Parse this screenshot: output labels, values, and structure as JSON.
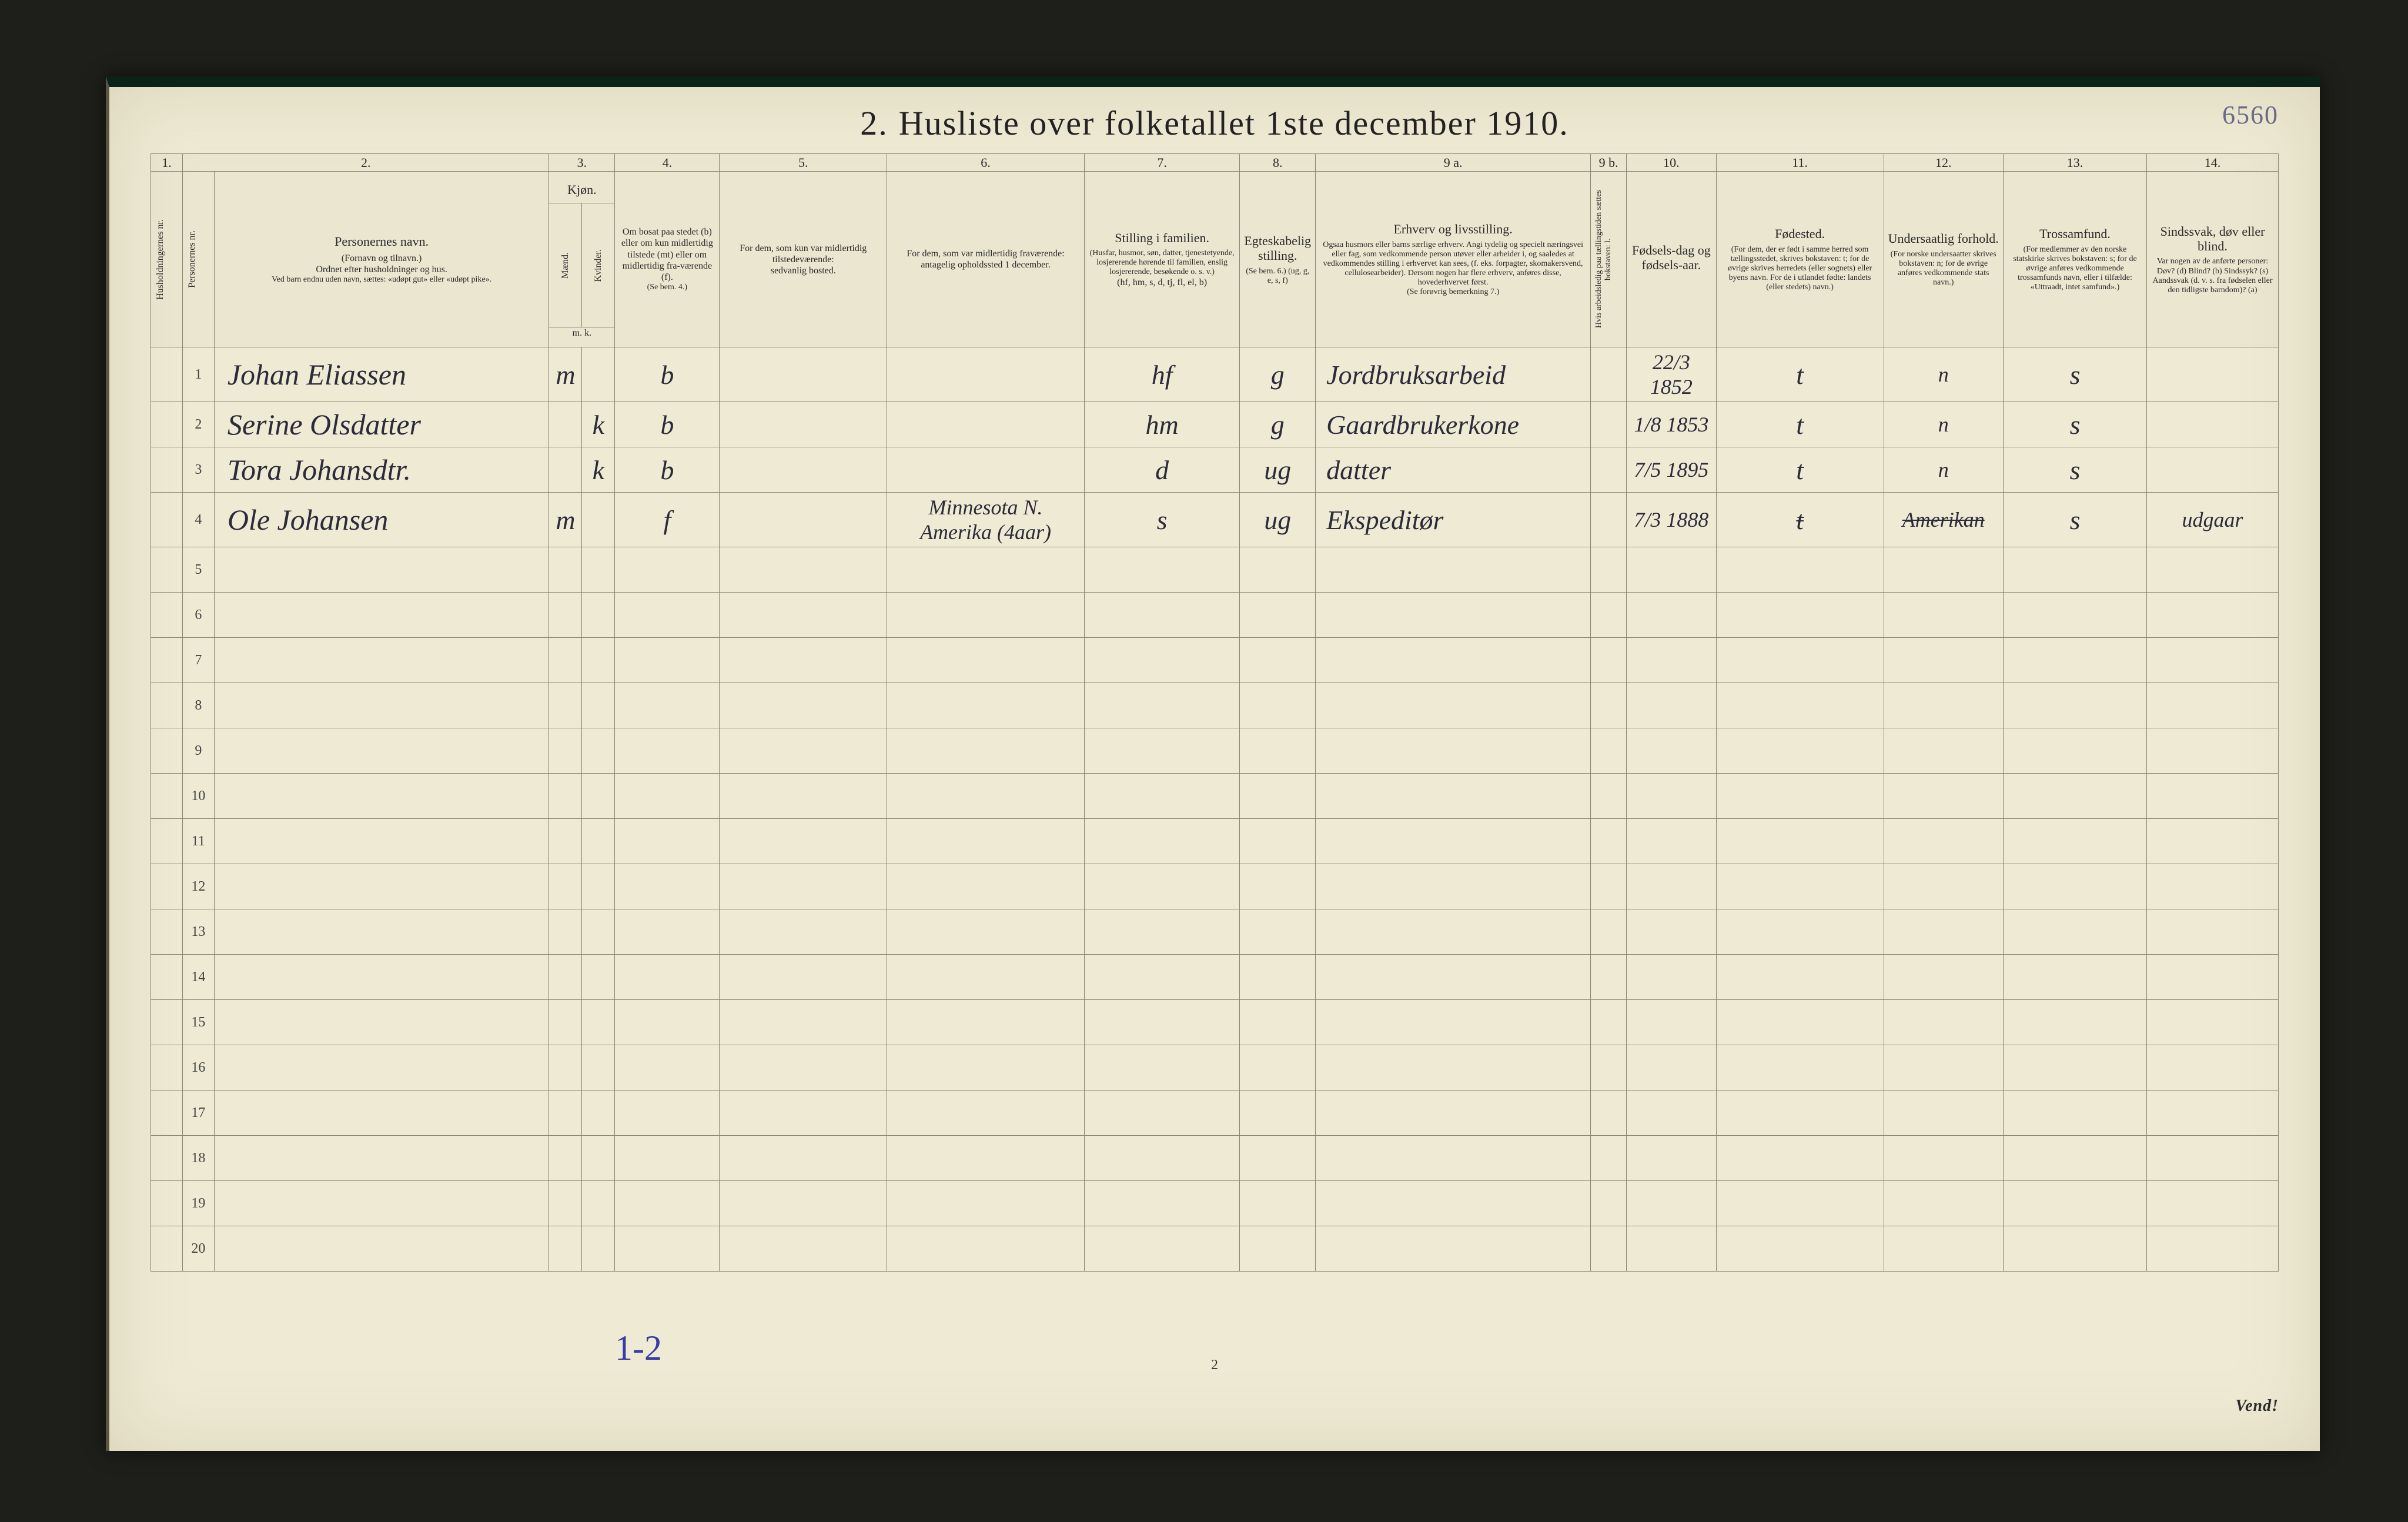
{
  "meta": {
    "title_leadnum": "2.",
    "title_text": "Husliste over folketallet 1ste december 1910.",
    "topright_pencil": "6560",
    "footer_handwritten": "1-2",
    "bottom_page_number": "2",
    "vend": "Vend!"
  },
  "column_numbers": [
    "1.",
    "2.",
    "3.",
    "4.",
    "5.",
    "6.",
    "7.",
    "8.",
    "9 a.",
    "9 b.",
    "10.",
    "11.",
    "12.",
    "13.",
    "14."
  ],
  "headers": {
    "c1": "Husholdningernes nr.",
    "c2": "Personernes nr.",
    "c3_hd": "Personernes navn.",
    "c3_s1": "(Fornavn og tilnavn.)",
    "c3_s2": "Ordnet efter husholdninger og hus.",
    "c3_s3": "Ved barn endnu uden navn, sættes: «udøpt gut» eller «udøpt pike».",
    "c4_hd": "Kjøn.",
    "c4_ma": "Mænd.",
    "c4_kv": "Kvinder.",
    "c4_mk": "m.  k.",
    "c5_hd": "Om bosat paa stedet (b) eller om kun midlertidig tilstede (mt) eller om midlertidig fra-værende (f).",
    "c5_s": "(Se bem. 4.)",
    "c6_hd": "For dem, som kun var midlertidig tilstedeværende:",
    "c6_s": "sedvanlig bosted.",
    "c7_hd": "For dem, som var midlertidig fraværende:",
    "c7_s": "antagelig opholdssted 1 december.",
    "c8_hd": "Stilling i familien.",
    "c8_s1": "(Husfar, husmor, søn, datter, tjenestetyende, losjererende hørende til familien, enslig losjererende, besøkende o. s. v.)",
    "c8_s2": "(hf, hm, s, d, tj, fl, el, b)",
    "c9_hd": "Egteskabelig stilling.",
    "c9_s": "(Se bem. 6.)  (ug, g, e, s, f)",
    "c10_hd": "Erhverv og livsstilling.",
    "c10_s1": "Ogsaa husmors eller barns særlige erhverv. Angi tydelig og specielt næringsvei eller fag, som vedkommende person utøver eller arbeider i, og saaledes at vedkommendes stilling i erhvervet kan sees, (f. eks. forpagter, skomakersvend, cellulosearbeider). Dersom nogen har flere erhverv, anføres disse, hovederhvervet først.",
    "c10_s2": "(Se forøvrig bemerkning 7.)",
    "c11_hd": "Hvis arbeidsledig paa tællingstiden sættes bokstaven: l.",
    "c12_hd": "Fødsels-dag og fødsels-aar.",
    "c13_hd": "Fødested.",
    "c13_s": "(For dem, der er født i samme herred som tællingsstedet, skrives bokstaven: t; for de øvrige skrives herredets (eller sognets) eller byens navn. For de i utlandet fødte: landets (eller stedets) navn.)",
    "c14_hd": "Undersaatlig forhold.",
    "c14_s": "(For norske undersaatter skrives bokstaven: n; for de øvrige anføres vedkommende stats navn.)",
    "c15_hd": "Trossamfund.",
    "c15_s": "(For medlemmer av den norske statskirke skrives bokstaven: s; for de øvrige anføres vedkommende trossamfunds navn, eller i tilfælde: «Uttraadt, intet samfund».)",
    "c16_hd": "Sindssvak, døv eller blind.",
    "c16_s": "Var nogen av de anførte personer: Døv? (d)  Blind? (b)  Sindssyk? (s)  Aandssvak (d. v. s. fra fødselen eller den tidligste barndom)? (a)"
  },
  "rows": [
    {
      "n": "1",
      "name": "Johan Eliassen",
      "sex_m": "m",
      "sex_k": "",
      "res": "b",
      "usual": "",
      "away": "",
      "fam": "hf",
      "mar": "g",
      "occ": "Jordbruksarbeid",
      "led": "",
      "birth": "22/3 1852",
      "bplace": "t",
      "nat": "n",
      "rel": "s",
      "inf": ""
    },
    {
      "n": "2",
      "name": "Serine Olsdatter",
      "sex_m": "",
      "sex_k": "k",
      "res": "b",
      "usual": "",
      "away": "",
      "fam": "hm",
      "mar": "g",
      "occ": "Gaardbrukerkone",
      "led": "",
      "birth": "1/8 1853",
      "bplace": "t",
      "nat": "n",
      "rel": "s",
      "inf": ""
    },
    {
      "n": "3",
      "name": "Tora Johansdtr.",
      "sex_m": "",
      "sex_k": "k",
      "res": "b",
      "usual": "",
      "away": "",
      "fam": "d",
      "mar": "ug",
      "occ": "datter",
      "led": "",
      "birth": "7/5 1895",
      "bplace": "t",
      "nat": "n",
      "rel": "s",
      "inf": ""
    },
    {
      "n": "4",
      "name": "Ole Johansen",
      "sex_m": "m",
      "sex_k": "",
      "res": "f",
      "usual": "",
      "away": "Minnesota N. Amerika (4aar)",
      "fam": "s",
      "mar": "ug",
      "occ": "Ekspeditør",
      "led": "",
      "birth": "7/3 1888",
      "bplace": "t",
      "nat": "Amerikan",
      "rel": "s",
      "inf": "udgaar"
    }
  ],
  "empty_row_count": 16,
  "colors": {
    "page_bg": "#efead4",
    "rule": "#8a8672",
    "ink": "#2b2b3a",
    "pencil": "#6a6a88",
    "blue_ink": "#3a3aa8"
  }
}
